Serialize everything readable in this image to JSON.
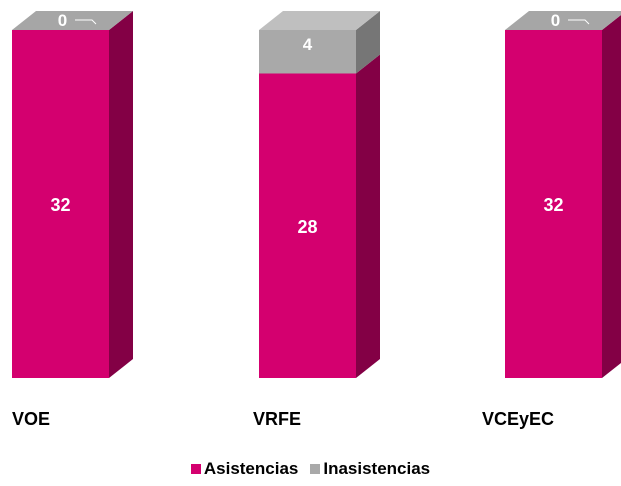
{
  "chart_data": {
    "type": "bar",
    "stacked": true,
    "style": "3d-column",
    "categories": [
      "VOE",
      "VRFE",
      "VCEyEC"
    ],
    "series": [
      {
        "name": "Asistencias",
        "values": [
          32,
          28,
          32
        ],
        "color": "#d4006f"
      },
      {
        "name": "Inasistencias",
        "values": [
          0,
          4,
          0
        ],
        "color": "#a9a9a9"
      }
    ],
    "ylim": [
      0,
      32
    ],
    "legend_position": "bottom",
    "grid": false
  }
}
